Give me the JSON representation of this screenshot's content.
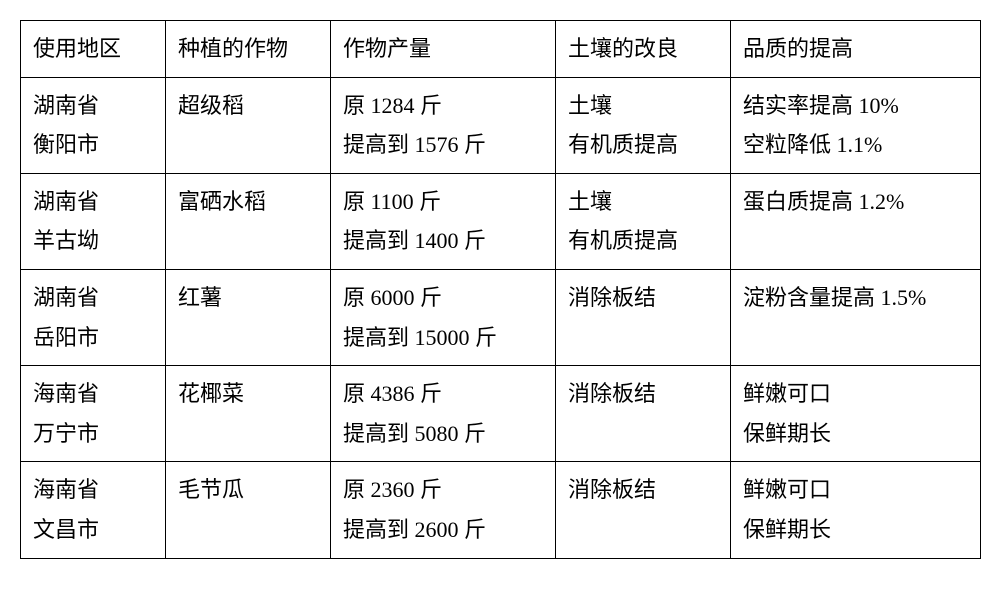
{
  "table": {
    "background_color": "#ffffff",
    "border_color": "#000000",
    "text_color": "#000000",
    "font_size": 22,
    "font_family": "SimSun",
    "headers": {
      "region": "使用地区",
      "crop": "种植的作物",
      "yield": "作物产量",
      "soil": "土壤的改良",
      "quality": "品质的提高"
    },
    "rows": [
      {
        "region_line1": "湖南省",
        "region_line2": "衡阳市",
        "crop": "超级稻",
        "yield_line1": "原 1284 斤",
        "yield_line2": "提高到 1576 斤",
        "soil_line1": "土壤",
        "soil_line2": "有机质提高",
        "quality_line1": "结实率提高 10%",
        "quality_line2": "空粒降低 1.1%"
      },
      {
        "region_line1": "湖南省",
        "region_line2": "羊古坳",
        "crop": "富硒水稻",
        "yield_line1": "原 1100 斤",
        "yield_line2": "提高到 1400 斤",
        "soil_line1": "土壤",
        "soil_line2": "有机质提高",
        "quality_line1": "蛋白质提高 1.2%",
        "quality_line2": ""
      },
      {
        "region_line1": "湖南省",
        "region_line2": "岳阳市",
        "crop": "红薯",
        "yield_line1": "原 6000 斤",
        "yield_line2": "提高到 15000 斤",
        "soil_line1": "消除板结",
        "soil_line2": "",
        "quality_line1": "淀粉含量提高 1.5%",
        "quality_line2": ""
      },
      {
        "region_line1": "海南省",
        "region_line2": "万宁市",
        "crop": "花椰菜",
        "yield_line1": "原 4386 斤",
        "yield_line2": "提高到 5080 斤",
        "soil_line1": "消除板结",
        "soil_line2": "",
        "quality_line1": "鲜嫩可口",
        "quality_line2": "保鲜期长"
      },
      {
        "region_line1": "海南省",
        "region_line2": "文昌市",
        "crop": "毛节瓜",
        "yield_line1": "原 2360 斤",
        "yield_line2": "提高到 2600 斤",
        "soil_line1": "消除板结",
        "soil_line2": "",
        "quality_line1": "鲜嫩可口",
        "quality_line2": "保鲜期长"
      }
    ]
  }
}
